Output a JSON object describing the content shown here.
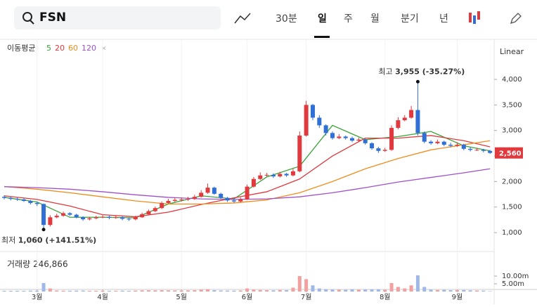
{
  "header": {
    "search": "FSN",
    "interval": "30분",
    "tabs": [
      "일",
      "주",
      "월",
      "분기",
      "년"
    ],
    "scale": "Linear"
  },
  "legend": {
    "label": "이동평균",
    "items": [
      "5",
      "20",
      "60",
      "120"
    ]
  },
  "volume_label": {
    "name": "거래량",
    "value": "246,866"
  },
  "price_tag": "2,560",
  "annotations": {
    "high": {
      "name": "최고",
      "value": "3,955 (-35.27%)",
      "index": 63,
      "price": 3955
    },
    "low": {
      "name": "최저",
      "value": "1,060 (+141.51%)",
      "index": 6,
      "price": 1060
    }
  },
  "chart_data": {
    "type": "candlestick",
    "ylim": [
      630,
      4770
    ],
    "yticks": [
      {
        "value": 4000,
        "label": "4,000"
      },
      {
        "value": 3500,
        "label": "3,500"
      },
      {
        "value": 3000,
        "label": "3,000"
      },
      {
        "value": 2500,
        "label": "2,500"
      },
      {
        "value": 2000,
        "label": "2,000"
      },
      {
        "value": 1500,
        "label": "1,500"
      },
      {
        "value": 1000,
        "label": "1,000"
      }
    ],
    "xticks": [
      {
        "value": 5,
        "label": "3월"
      },
      {
        "value": 15,
        "label": "4월"
      },
      {
        "value": 27,
        "label": "5월"
      },
      {
        "value": 37,
        "label": "6월"
      },
      {
        "value": 46,
        "label": "7월"
      },
      {
        "value": 58,
        "label": "8월"
      },
      {
        "value": 69,
        "label": "9월"
      }
    ],
    "up_color": "#e0393e",
    "down_color": "#2f6fd6",
    "ohlc": [
      [
        1700,
        1730,
        1650,
        1680
      ],
      [
        1680,
        1700,
        1630,
        1660
      ],
      [
        1660,
        1690,
        1620,
        1650
      ],
      [
        1650,
        1670,
        1600,
        1620
      ],
      [
        1620,
        1640,
        1550,
        1580
      ],
      [
        1580,
        1610,
        1520,
        1560
      ],
      [
        1560,
        1570,
        1060,
        1150
      ],
      [
        1150,
        1340,
        1120,
        1300
      ],
      [
        1300,
        1370,
        1280,
        1330
      ],
      [
        1330,
        1410,
        1310,
        1380
      ],
      [
        1380,
        1400,
        1330,
        1350
      ],
      [
        1350,
        1370,
        1280,
        1300
      ],
      [
        1300,
        1320,
        1230,
        1260
      ],
      [
        1260,
        1310,
        1240,
        1280
      ],
      [
        1280,
        1330,
        1260,
        1300
      ],
      [
        1300,
        1340,
        1280,
        1310
      ],
      [
        1310,
        1330,
        1260,
        1290
      ],
      [
        1290,
        1330,
        1270,
        1300
      ],
      [
        1300,
        1320,
        1240,
        1270
      ],
      [
        1270,
        1290,
        1230,
        1260
      ],
      [
        1260,
        1330,
        1240,
        1300
      ],
      [
        1300,
        1390,
        1290,
        1360
      ],
      [
        1360,
        1450,
        1340,
        1420
      ],
      [
        1420,
        1510,
        1400,
        1480
      ],
      [
        1480,
        1610,
        1460,
        1580
      ],
      [
        1580,
        1660,
        1560,
        1620
      ],
      [
        1620,
        1680,
        1600,
        1640
      ],
      [
        1640,
        1690,
        1610,
        1650
      ],
      [
        1650,
        1700,
        1620,
        1660
      ],
      [
        1660,
        1740,
        1640,
        1700
      ],
      [
        1700,
        1830,
        1690,
        1780
      ],
      [
        1780,
        1960,
        1760,
        1880
      ],
      [
        1880,
        1900,
        1740,
        1760
      ],
      [
        1760,
        1780,
        1650,
        1680
      ],
      [
        1680,
        1700,
        1600,
        1630
      ],
      [
        1630,
        1660,
        1580,
        1610
      ],
      [
        1610,
        1690,
        1590,
        1650
      ],
      [
        1650,
        1940,
        1640,
        1900
      ],
      [
        1900,
        2090,
        1880,
        2050
      ],
      [
        2050,
        2180,
        2030,
        2120
      ],
      [
        2120,
        2170,
        2090,
        2130
      ],
      [
        2130,
        2160,
        2070,
        2100
      ],
      [
        2100,
        2190,
        2080,
        2150
      ],
      [
        2150,
        2170,
        2090,
        2120
      ],
      [
        2120,
        2250,
        2100,
        2200
      ],
      [
        2200,
        2980,
        2180,
        2900
      ],
      [
        2900,
        3580,
        2880,
        3500
      ],
      [
        3500,
        3520,
        3200,
        3250
      ],
      [
        3250,
        3300,
        3050,
        3100
      ],
      [
        3100,
        3120,
        2900,
        2950
      ],
      [
        2950,
        2980,
        2820,
        2850
      ],
      [
        2850,
        2930,
        2830,
        2880
      ],
      [
        2880,
        2900,
        2820,
        2850
      ],
      [
        2850,
        2880,
        2770,
        2800
      ],
      [
        2800,
        2860,
        2780,
        2820
      ],
      [
        2820,
        2840,
        2720,
        2750
      ],
      [
        2750,
        2770,
        2620,
        2650
      ],
      [
        2650,
        2680,
        2560,
        2600
      ],
      [
        2600,
        2660,
        2580,
        2620
      ],
      [
        2620,
        3100,
        2600,
        3050
      ],
      [
        3050,
        3260,
        3020,
        3200
      ],
      [
        3200,
        3300,
        3180,
        3250
      ],
      [
        3250,
        3480,
        3230,
        3400
      ],
      [
        3400,
        3955,
        2900,
        2950
      ],
      [
        2950,
        2980,
        2750,
        2780
      ],
      [
        2780,
        2810,
        2720,
        2750
      ],
      [
        2750,
        2820,
        2730,
        2780
      ],
      [
        2780,
        2800,
        2690,
        2720
      ],
      [
        2720,
        2760,
        2670,
        2700
      ],
      [
        2700,
        2770,
        2680,
        2720
      ],
      [
        2720,
        2740,
        2610,
        2640
      ],
      [
        2640,
        2670,
        2590,
        2620
      ],
      [
        2620,
        2660,
        2600,
        2620
      ],
      [
        2620,
        2640,
        2570,
        2600
      ],
      [
        2600,
        2620,
        2540,
        2560
      ]
    ],
    "volume": [
      500000,
      450000,
      520000,
      480000,
      600000,
      550000,
      5500000,
      2000000,
      700000,
      600000,
      550000,
      600000,
      650000,
      500000,
      550000,
      600000,
      500000,
      550000,
      600000,
      500000,
      650000,
      800000,
      850000,
      800000,
      900000,
      800000,
      750000,
      700000,
      800000,
      900000,
      1200000,
      1500000,
      900000,
      700000,
      650000,
      600000,
      700000,
      2000000,
      1200000,
      1000000,
      900000,
      800000,
      1000000,
      900000,
      2500000,
      10000000,
      8000000,
      4000000,
      2000000,
      1500000,
      1300000,
      1200000,
      1100000,
      1500000,
      1200000,
      1300000,
      1400000,
      1500000,
      1200000,
      5500000,
      3000000,
      2000000,
      4000000,
      10500000,
      3000000,
      1200000,
      1000000,
      1100000,
      900000,
      1000000,
      1000000,
      800000,
      700000,
      600000,
      246866
    ],
    "vlim": [
      0,
      25900000
    ],
    "vticks": [
      {
        "value": 10000000,
        "label": "10.00m"
      },
      {
        "value": 5000000,
        "label": "5.00m"
      }
    ],
    "ma_x": [
      0,
      5,
      10,
      15,
      20,
      25,
      30,
      35,
      40,
      45,
      50,
      55,
      60,
      65,
      70,
      74
    ],
    "series": [
      {
        "name": "5",
        "color": "#3aa33a",
        "values": [
          1690,
          1600,
          1300,
          1300,
          1290,
          1560,
          1720,
          1660,
          2090,
          2300,
          3100,
          2820,
          2880,
          2980,
          2700,
          2600
        ]
      },
      {
        "name": "20",
        "color": "#e0393e",
        "values": [
          1720,
          1650,
          1520,
          1350,
          1310,
          1400,
          1550,
          1680,
          1800,
          2050,
          2500,
          2850,
          2850,
          2900,
          2800,
          2680
        ]
      },
      {
        "name": "60",
        "color": "#f08c1e",
        "values": [
          1900,
          1850,
          1780,
          1700,
          1620,
          1560,
          1560,
          1580,
          1640,
          1780,
          2000,
          2250,
          2450,
          2620,
          2720,
          2800
        ]
      },
      {
        "name": "120",
        "color": "#a050c8",
        "values": [
          1900,
          1880,
          1850,
          1800,
          1740,
          1690,
          1660,
          1650,
          1660,
          1700,
          1780,
          1880,
          1990,
          2080,
          2170,
          2250
        ]
      }
    ]
  }
}
